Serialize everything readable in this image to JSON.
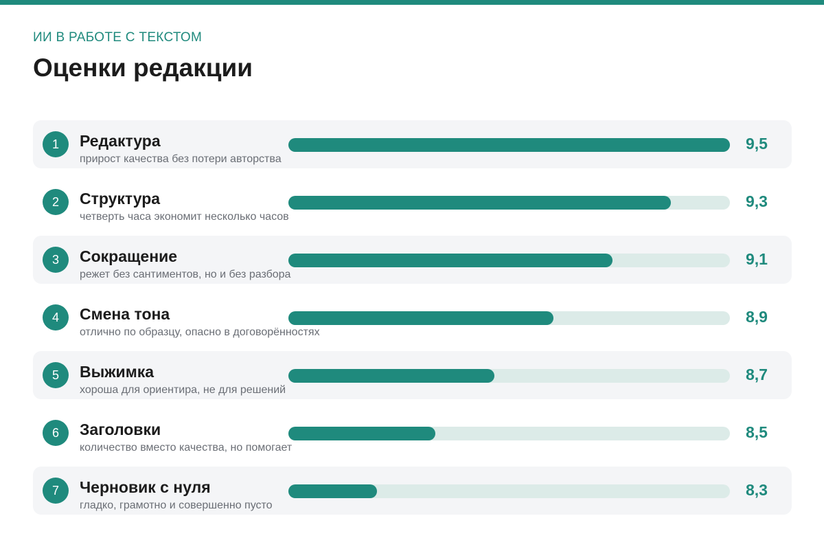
{
  "header": {
    "eyebrow": "ИИ В РАБОТЕ С ТЕКСТОМ",
    "title": "Оценки редакции"
  },
  "colors": {
    "accent": "#1f8a7d",
    "track": "#dcebe8",
    "row_shade": "#f4f5f7"
  },
  "chart_data": {
    "type": "bar",
    "orientation": "horizontal",
    "title": "Оценки редакции",
    "xlim": [
      8.0,
      9.5
    ],
    "grid": false,
    "categories": [
      "Редактура",
      "Структура",
      "Сокращение",
      "Смена тона",
      "Выжимка",
      "Заголовки",
      "Черновик с нуля"
    ],
    "values": [
      9.5,
      9.3,
      9.1,
      8.9,
      8.7,
      8.5,
      8.3
    ],
    "items": [
      {
        "rank": "1",
        "label": "Редактура",
        "note": "прирост качества без потери авторства",
        "value": 9.5,
        "value_label": "9,5"
      },
      {
        "rank": "2",
        "label": "Структура",
        "note": "четверть часа экономит несколько часов",
        "value": 9.3,
        "value_label": "9,3"
      },
      {
        "rank": "3",
        "label": "Сокращение",
        "note": "режет без сантиментов, но и без разбора",
        "value": 9.1,
        "value_label": "9,1"
      },
      {
        "rank": "4",
        "label": "Смена тона",
        "note": "отлично по образцу, опасно в договорённостях",
        "value": 8.9,
        "value_label": "8,9"
      },
      {
        "rank": "5",
        "label": "Выжимка",
        "note": "хороша для ориентира, не для решений",
        "value": 8.7,
        "value_label": "8,7"
      },
      {
        "rank": "6",
        "label": "Заголовки",
        "note": "количество вместо качества, но помогает",
        "value": 8.5,
        "value_label": "8,5"
      },
      {
        "rank": "7",
        "label": "Черновик с нуля",
        "note": "гладко, грамотно и совершенно пусто",
        "value": 8.3,
        "value_label": "8,3"
      }
    ]
  }
}
